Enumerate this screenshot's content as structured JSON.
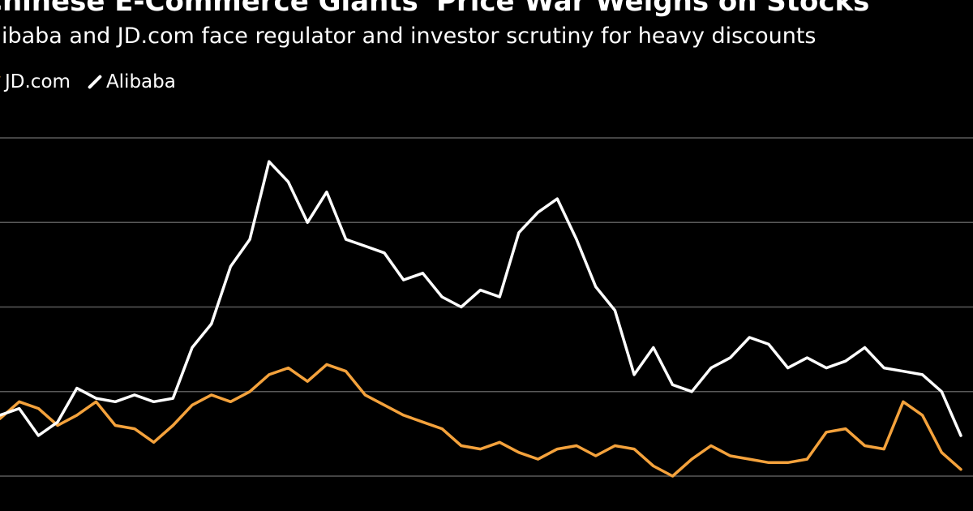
{
  "title": "Chinese E-Commerce Giants' Price War Weighs on Stocks",
  "subtitle": "Alibaba and JD.com face regulator and investor scrutiny for heavy discounts",
  "colors": {
    "background": "#000000",
    "gridline": "#5a5a5a",
    "jd": "#f4a23c",
    "alibaba": "#ffffff"
  },
  "chart_data": {
    "type": "line",
    "title": "Chinese E-Commerce Giants' Price War Weighs on Stocks",
    "subtitle": "Alibaba and JD.com face regulator and investor scrutiny for heavy discounts",
    "xlabel": "",
    "ylabel": "",
    "ylim": [
      0,
      100
    ],
    "grid": true,
    "legend_position": "top-left",
    "y_gridlines": [
      0,
      25,
      50,
      75,
      100
    ],
    "x": [
      0,
      2,
      4,
      6,
      8,
      10,
      12,
      14,
      16,
      18,
      20,
      22,
      24,
      26,
      28,
      30,
      32,
      34,
      36,
      38,
      40,
      42,
      44,
      46,
      48,
      50,
      52,
      54,
      56,
      58,
      60,
      62,
      64,
      66,
      68,
      70,
      72,
      74,
      76,
      78,
      80,
      82,
      84,
      86,
      88,
      90,
      92,
      94,
      96,
      98,
      100
    ],
    "series": [
      {
        "name": "JD.com",
        "color": "#f4a23c",
        "values": [
          17,
          22,
          20,
          15,
          18,
          22,
          15,
          14,
          10,
          15,
          21,
          24,
          22,
          25,
          30,
          32,
          28,
          33,
          31,
          24,
          21,
          18,
          16,
          14,
          9,
          8,
          10,
          7,
          5,
          8,
          9,
          6,
          9,
          8,
          3,
          0,
          5,
          9,
          6,
          5,
          4,
          4,
          5,
          13,
          14,
          9,
          8,
          22,
          18,
          7,
          2
        ]
      },
      {
        "name": "Alibaba",
        "color": "#ffffff",
        "values": [
          18,
          20,
          12,
          16,
          26,
          23,
          22,
          24,
          22,
          23,
          38,
          45,
          62,
          70,
          93,
          87,
          75,
          84,
          70,
          68,
          66,
          58,
          60,
          53,
          50,
          55,
          53,
          72,
          78,
          82,
          70,
          56,
          49,
          30,
          38,
          27,
          25,
          32,
          35,
          41,
          39,
          32,
          35,
          32,
          34,
          38,
          32,
          31,
          30,
          25,
          12
        ]
      }
    ]
  }
}
